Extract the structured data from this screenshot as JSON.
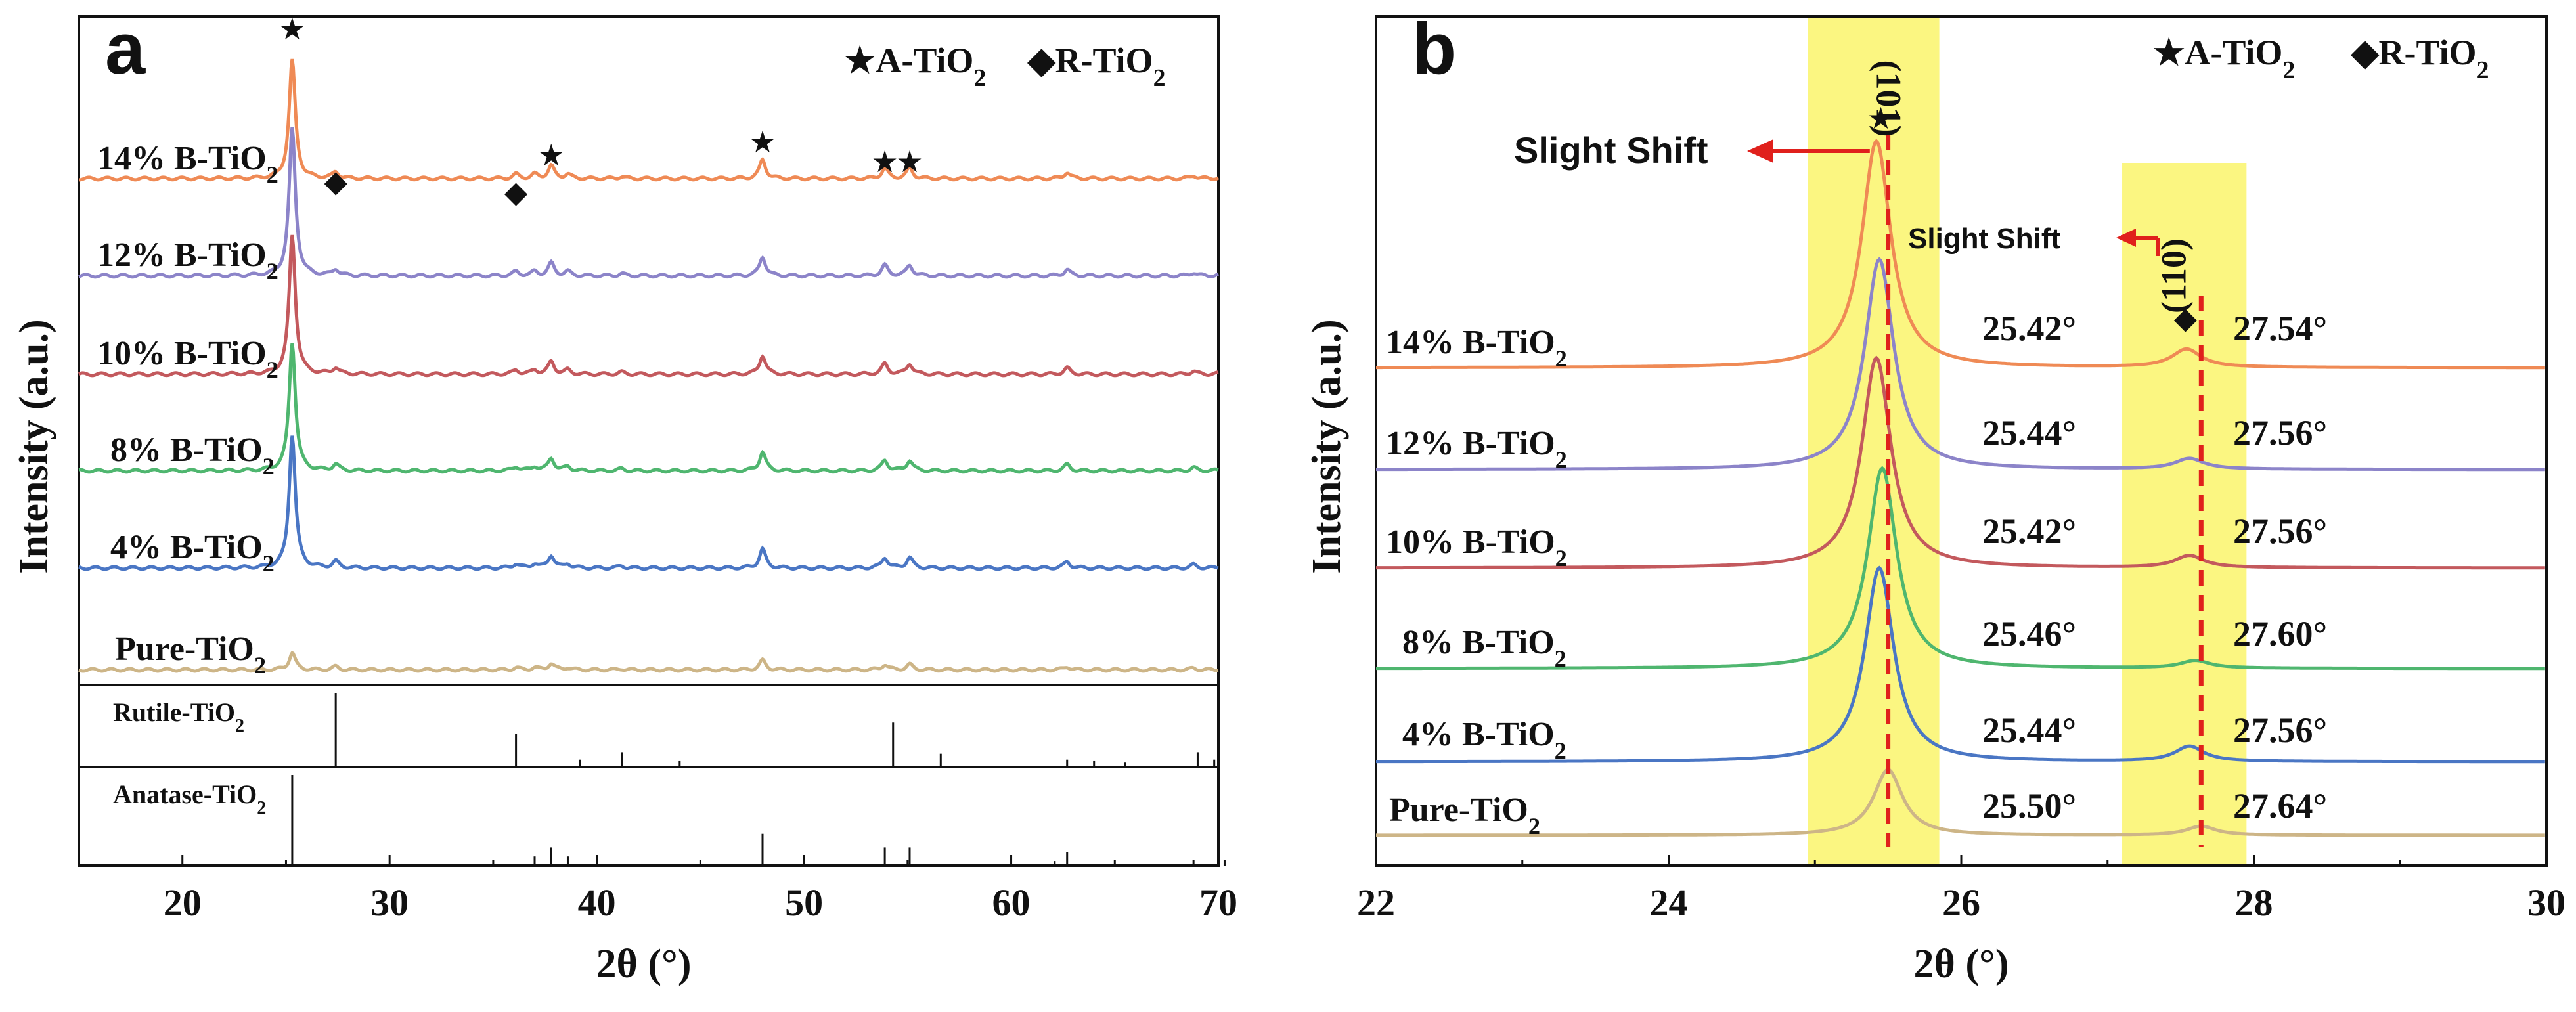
{
  "chart_data": [
    {
      "type": "line",
      "panel": "a",
      "title": "",
      "xlabel": "2θ (°)",
      "ylabel": "Intensity (a.u.)",
      "xlim": [
        15,
        70
      ],
      "xticks": [
        20,
        30,
        40,
        50,
        60,
        70
      ],
      "legend": [
        {
          "symbol": "★",
          "label": "A-TiO",
          "sub": "2"
        },
        {
          "symbol": "◆",
          "label": "R-TiO",
          "sub": "2"
        }
      ],
      "series": [
        {
          "name": "14% B-TiO",
          "sub": "2",
          "color": "#ef8a55",
          "offset": 5
        },
        {
          "name": "12% B-TiO",
          "sub": "2",
          "color": "#8c84c9",
          "offset": 4
        },
        {
          "name": "10% B-TiO",
          "sub": "2",
          "color": "#c3595d",
          "offset": 3
        },
        {
          "name": "8% B-TiO",
          "sub": "2",
          "color": "#4fb66f",
          "offset": 2
        },
        {
          "name": "4% B-TiO",
          "sub": "2",
          "color": "#4a76c4",
          "offset": 1
        },
        {
          "name": "Pure-TiO",
          "sub": "2",
          "color": "#cdb587",
          "offset": 0
        }
      ],
      "peaks": [
        {
          "two_theta": 25.3,
          "intensity": 100,
          "phase": "A"
        },
        {
          "two_theta": 27.4,
          "intensity": 6,
          "phase": "R"
        },
        {
          "two_theta": 36.1,
          "intensity": 4,
          "phase": "R"
        },
        {
          "two_theta": 37.0,
          "intensity": 4,
          "phase": "A"
        },
        {
          "two_theta": 37.8,
          "intensity": 12,
          "phase": "A"
        },
        {
          "two_theta": 38.6,
          "intensity": 4,
          "phase": "A"
        },
        {
          "two_theta": 41.2,
          "intensity": 2,
          "phase": "R"
        },
        {
          "two_theta": 48.0,
          "intensity": 18,
          "phase": "A"
        },
        {
          "two_theta": 53.9,
          "intensity": 10,
          "phase": "A"
        },
        {
          "two_theta": 55.1,
          "intensity": 10,
          "phase": "A"
        },
        {
          "two_theta": 62.7,
          "intensity": 6,
          "phase": "A"
        },
        {
          "two_theta": 68.8,
          "intensity": 3,
          "phase": "A"
        },
        {
          "two_theta": 70.3,
          "intensity": 3,
          "phase": "A"
        }
      ],
      "star_markers": [
        25.3,
        37.8,
        48.0,
        53.9,
        55.1
      ],
      "diamond_markers": [
        27.4,
        36.1
      ],
      "references": [
        {
          "name": "Rutile-TiO",
          "sub": "2",
          "lines": [
            {
              "x": 27.4,
              "h": 1.0
            },
            {
              "x": 36.1,
              "h": 0.45
            },
            {
              "x": 39.2,
              "h": 0.1
            },
            {
              "x": 41.2,
              "h": 0.2
            },
            {
              "x": 44.0,
              "h": 0.08
            },
            {
              "x": 54.3,
              "h": 0.6
            },
            {
              "x": 56.6,
              "h": 0.18
            },
            {
              "x": 62.7,
              "h": 0.1
            },
            {
              "x": 64.0,
              "h": 0.08
            },
            {
              "x": 65.5,
              "h": 0.06
            },
            {
              "x": 69.0,
              "h": 0.2
            },
            {
              "x": 69.8,
              "h": 0.1
            }
          ]
        },
        {
          "name": "Anatase-TiO",
          "sub": "2",
          "lines": [
            {
              "x": 25.3,
              "h": 1.0
            },
            {
              "x": 37.0,
              "h": 0.1
            },
            {
              "x": 37.8,
              "h": 0.2
            },
            {
              "x": 38.6,
              "h": 0.1
            },
            {
              "x": 48.0,
              "h": 0.35
            },
            {
              "x": 53.9,
              "h": 0.2
            },
            {
              "x": 55.1,
              "h": 0.2
            },
            {
              "x": 62.1,
              "h": 0.05
            },
            {
              "x": 62.7,
              "h": 0.15
            },
            {
              "x": 68.8,
              "h": 0.06
            },
            {
              "x": 70.3,
              "h": 0.06
            }
          ]
        }
      ]
    },
    {
      "type": "line",
      "panel": "b",
      "title": "",
      "xlabel": "2θ (°)",
      "ylabel": "Intensity (a.u.)",
      "xlim": [
        22,
        30
      ],
      "xticks": [
        22,
        24,
        26,
        28,
        30
      ],
      "legend": [
        {
          "symbol": "★",
          "label": "A-TiO",
          "sub": "2"
        },
        {
          "symbol": "◆",
          "label": "R-TiO",
          "sub": "2"
        }
      ],
      "highlight_ranges": [
        [
          24.95,
          25.85
        ],
        [
          27.1,
          27.95
        ]
      ],
      "reference_lines": [
        {
          "x": 25.5,
          "label": "(101)",
          "symbol": "★"
        },
        {
          "x": 27.64,
          "label": "(110)",
          "symbol": "◆"
        }
      ],
      "annotations": [
        {
          "text": "Slight Shift",
          "near_peak": "101"
        },
        {
          "text": "Slight Shift",
          "near_peak": "110"
        }
      ],
      "series": [
        {
          "name": "14% B-TiO",
          "sub": "2",
          "color": "#ef8a55",
          "peak_101": 25.42,
          "peak_110": 27.54,
          "label_101": "25.42°",
          "label_110": "27.54°",
          "amp_101": 1.0,
          "amp_110": 0.12
        },
        {
          "name": "12% B-TiO",
          "sub": "2",
          "color": "#8c84c9",
          "peak_101": 25.44,
          "peak_110": 27.56,
          "label_101": "25.44°",
          "label_110": "27.56°",
          "amp_101": 0.92,
          "amp_110": 0.07
        },
        {
          "name": "10% B-TiO",
          "sub": "2",
          "color": "#c3595d",
          "peak_101": 25.42,
          "peak_110": 27.56,
          "label_101": "25.42°",
          "label_110": "27.56°",
          "amp_101": 0.9,
          "amp_110": 0.08
        },
        {
          "name": "8% B-TiO",
          "sub": "2",
          "color": "#4fb66f",
          "peak_101": 25.46,
          "peak_110": 27.6,
          "label_101": "25.46°",
          "label_110": "27.60°",
          "amp_101": 0.9,
          "amp_110": 0.05
        },
        {
          "name": "4% B-TiO",
          "sub": "2",
          "color": "#4a76c4",
          "peak_101": 25.44,
          "peak_110": 27.56,
          "label_101": "25.44°",
          "label_110": "27.56°",
          "amp_101": 0.85,
          "amp_110": 0.1
        },
        {
          "name": "Pure-TiO",
          "sub": "2",
          "color": "#cdb587",
          "peak_101": 25.5,
          "peak_110": 27.64,
          "label_101": "25.50°",
          "label_110": "27.64°",
          "amp_101": 0.45,
          "amp_110": 0.06
        }
      ]
    }
  ]
}
